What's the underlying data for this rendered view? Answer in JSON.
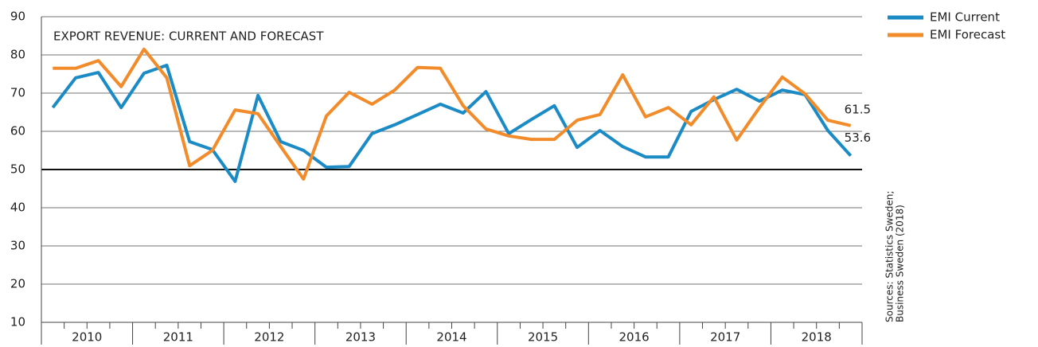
{
  "chart_data": {
    "type": "line",
    "title": "EXPORT REVENUE: CURRENT AND FORECAST",
    "categories": [
      null,
      "2010",
      null,
      null,
      null,
      "2011",
      null,
      null,
      null,
      "2012",
      null,
      null,
      null,
      "2013",
      null,
      null,
      null,
      "2014",
      null,
      null,
      null,
      "2015",
      null,
      null,
      null,
      "2016",
      null,
      null,
      null,
      "2017",
      null,
      null,
      null,
      "2018",
      null,
      null
    ],
    "series": [
      {
        "name": "EMI Current",
        "color": "#1b8bc6",
        "values": [
          66.2,
          74,
          75.4,
          66.2,
          75.2,
          77.3,
          57.3,
          55.2,
          46.9,
          69.4,
          57.3,
          55,
          50.6,
          50.8,
          59.4,
          61.7,
          64.4,
          67.1,
          64.8,
          70.4,
          59.4,
          63.1,
          66.7,
          55.8,
          60.2,
          56,
          53.3,
          53.3,
          65.2,
          68.3,
          71,
          67.9,
          70.8,
          69.6,
          60.2,
          53.6
        ]
      },
      {
        "name": "EMI Forecast",
        "color": "#f28b2a",
        "values": [
          76.5,
          76.5,
          78.5,
          71.7,
          81.5,
          74,
          51,
          55,
          65.6,
          64.6,
          56,
          47.5,
          64,
          70.2,
          67.1,
          70.8,
          76.7,
          76.5,
          66.7,
          60.6,
          58.8,
          57.9,
          57.9,
          62.9,
          64.4,
          74.8,
          63.8,
          66.2,
          61.7,
          69,
          57.7,
          66.2,
          74.2,
          69.8,
          62.9,
          61.5
        ]
      }
    ],
    "end_labels": [
      "53.6",
      "61.5"
    ],
    "ylim": [
      10,
      90
    ],
    "yticks": [
      10,
      20,
      30,
      40,
      50,
      60,
      70,
      80,
      90
    ],
    "reference_line": 50,
    "grid": true,
    "legend": "top-right",
    "source": [
      "Sources: Statistics Sweden;",
      "Business Sweden (2018)"
    ]
  }
}
